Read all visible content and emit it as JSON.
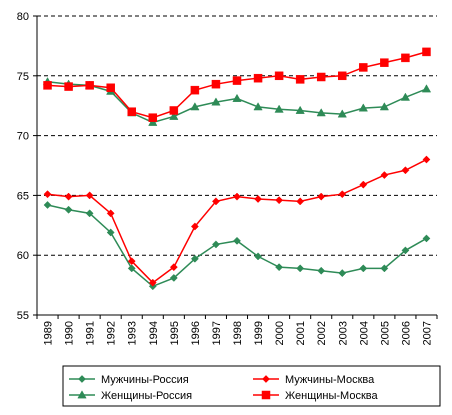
{
  "chart_data": {
    "type": "line",
    "categories": [
      "1989",
      "1990",
      "1991",
      "1992",
      "1993",
      "1994",
      "1995",
      "1996",
      "1997",
      "1998",
      "1999",
      "2000",
      "2001",
      "2002",
      "2003",
      "2004",
      "2005",
      "2006",
      "2007"
    ],
    "ylim": [
      55,
      80
    ],
    "yticks": [
      55,
      60,
      65,
      70,
      75,
      80
    ],
    "grid": "horizontal dashed",
    "legend_position": "bottom",
    "series": [
      {
        "name": "Мужчины-Россия",
        "color": "#2e8b57",
        "marker": "diamond",
        "values": [
          64.2,
          63.8,
          63.5,
          61.9,
          58.9,
          57.4,
          58.1,
          59.7,
          60.9,
          61.2,
          59.9,
          59.0,
          58.9,
          58.7,
          58.5,
          58.9,
          58.9,
          60.4,
          61.4
        ]
      },
      {
        "name": "Мужчины-Москва",
        "color": "#ff0000",
        "marker": "diamond",
        "values": [
          65.1,
          64.9,
          65.0,
          63.5,
          59.5,
          57.7,
          59.0,
          62.4,
          64.5,
          64.9,
          64.7,
          64.6,
          64.5,
          64.9,
          65.1,
          65.9,
          66.7,
          67.1,
          68.0
        ]
      },
      {
        "name": "Женщины-Россия",
        "color": "#2e8b57",
        "marker": "triangle",
        "values": [
          74.5,
          74.3,
          74.2,
          73.7,
          71.9,
          71.1,
          71.6,
          72.4,
          72.8,
          73.1,
          72.4,
          72.2,
          72.1,
          71.9,
          71.8,
          72.3,
          72.4,
          73.2,
          73.9
        ]
      },
      {
        "name": "Женщины-Москва",
        "color": "#ff0000",
        "marker": "square",
        "values": [
          74.2,
          74.1,
          74.2,
          74.0,
          72.0,
          71.5,
          72.1,
          73.8,
          74.3,
          74.6,
          74.8,
          75.0,
          74.7,
          74.9,
          75.0,
          75.7,
          76.1,
          76.5,
          77.0
        ]
      }
    ]
  }
}
